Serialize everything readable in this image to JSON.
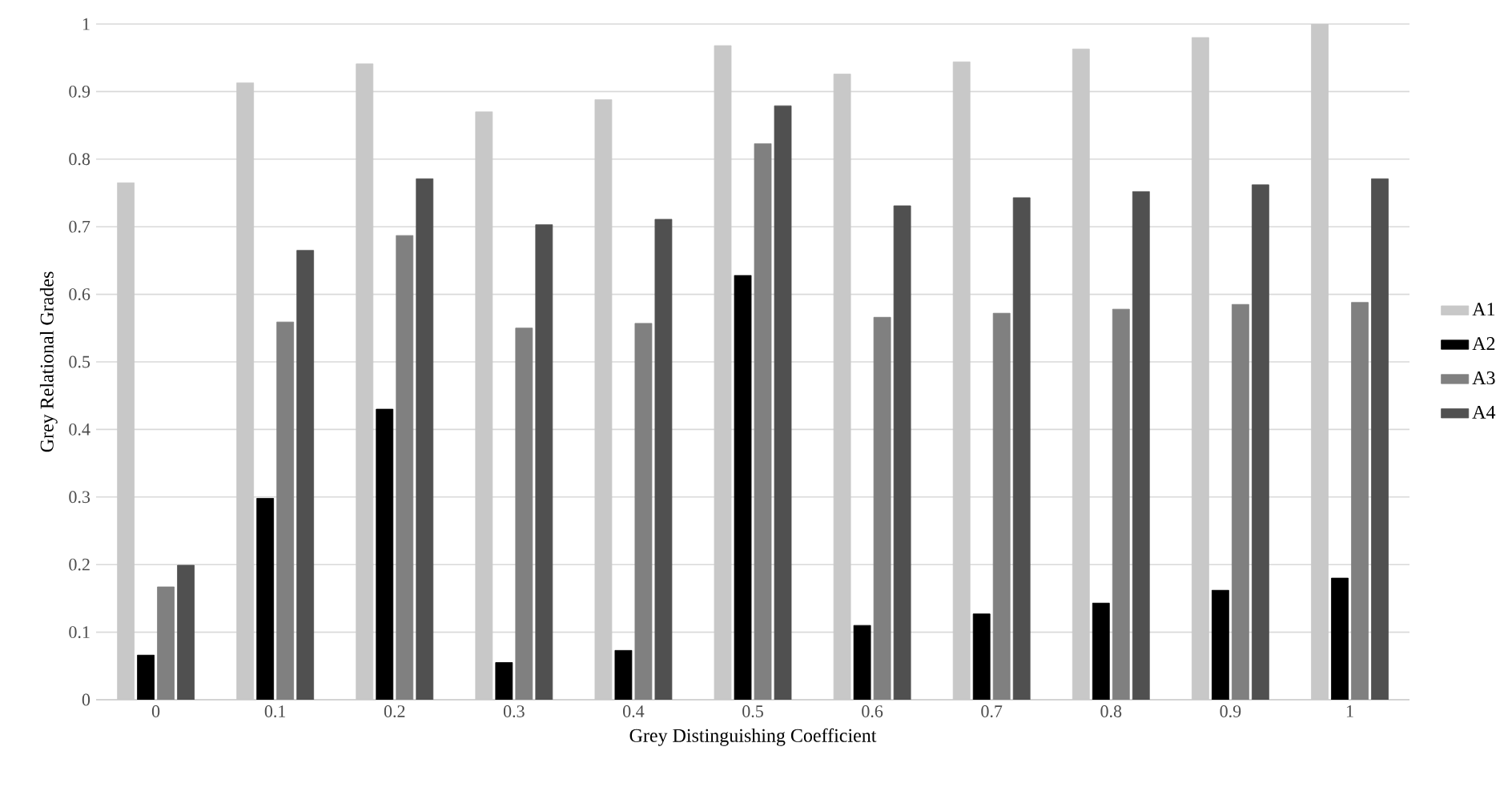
{
  "chart_data": {
    "type": "bar",
    "xlabel": "Grey Distinguishing Coefficient",
    "ylabel": "Grey Relational Grades",
    "categories": [
      "0",
      "0.1",
      "0.2",
      "0.3",
      "0.4",
      "0.5",
      "0.6",
      "0.7",
      "0.8",
      "0.9",
      "1"
    ],
    "series": [
      {
        "name": "A1",
        "color": "#c8c8c8",
        "values": [
          0.765,
          0.913,
          0.941,
          0.87,
          0.888,
          0.968,
          0.926,
          0.944,
          0.963,
          0.98,
          1.0
        ]
      },
      {
        "name": "A2",
        "color": "#000000",
        "values": [
          0.066,
          0.298,
          0.43,
          0.055,
          0.073,
          0.628,
          0.11,
          0.127,
          0.143,
          0.162,
          0.18
        ]
      },
      {
        "name": "A3",
        "color": "#808080",
        "values": [
          0.167,
          0.559,
          0.687,
          0.55,
          0.557,
          0.823,
          0.566,
          0.572,
          0.578,
          0.585,
          0.588
        ]
      },
      {
        "name": "A4",
        "color": "#505050",
        "values": [
          0.199,
          0.665,
          0.771,
          0.703,
          0.711,
          0.879,
          0.731,
          0.743,
          0.752,
          0.762,
          0.771
        ]
      }
    ],
    "ylim": [
      0,
      1
    ],
    "yticks": [
      0,
      0.1,
      0.2,
      0.3,
      0.4,
      0.5,
      0.6,
      0.7,
      0.8,
      0.9,
      1
    ],
    "grid": "y",
    "legend": "right"
  }
}
